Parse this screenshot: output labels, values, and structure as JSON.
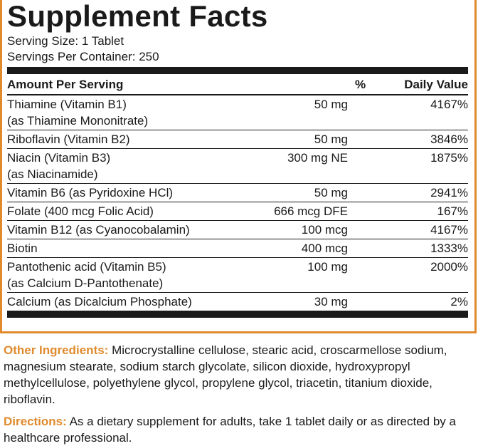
{
  "header": {
    "title": "Supplement Facts",
    "serving_size": "Serving Size: 1 Tablet",
    "servings_per_container": "Servings Per Container: 250"
  },
  "table": {
    "columns": [
      "Amount Per Serving",
      "%",
      "Daily Value"
    ],
    "rows": [
      {
        "name": "Thiamine (Vitamin B1)",
        "note": "(as Thiamine Mononitrate)",
        "amount": "50 mg",
        "daily_value": "4167%"
      },
      {
        "name": "Riboflavin (Vitamin B2)",
        "amount": "50 mg",
        "daily_value": "3846%"
      },
      {
        "name": "Niacin (Vitamin B3)",
        "note": "(as Niacinamide)",
        "amount": "300 mg NE",
        "daily_value": "1875%"
      },
      {
        "name": "Vitamin B6 (as Pyridoxine HCl)",
        "amount": "50 mg",
        "daily_value": "2941%"
      },
      {
        "name": "Folate (400 mcg Folic Acid)",
        "amount": "666 mcg DFE",
        "daily_value": "167%"
      },
      {
        "name": "Vitamin B12 (as Cyanocobalamin)",
        "amount": "100 mcg",
        "daily_value": "4167%"
      },
      {
        "name": "Biotin",
        "amount": "400 mcg",
        "daily_value": "1333%"
      },
      {
        "name": "Pantothenic acid (Vitamin B5)",
        "note": "(as Calcium D-Pantothenate)",
        "amount": "100 mg",
        "daily_value": "2000%"
      },
      {
        "name": "Calcium (as Dicalcium Phosphate)",
        "amount": "30 mg",
        "daily_value": "2%"
      }
    ]
  },
  "other_ingredients": {
    "label": "Other Ingredients:",
    "text": "Microcrystalline cellulose, stearic acid, croscarmellose sodium, magnesium stearate, sodium starch glycolate, silicon dioxide, hydroxypropyl methylcellulose, polyethylene glycol, propylene glycol, triacetin, titanium dioxide, riboflavin."
  },
  "directions": {
    "label": "Directions:",
    "text": "As a dietary supplement for adults, take 1 tablet daily or as directed by a healthcare professional."
  }
}
